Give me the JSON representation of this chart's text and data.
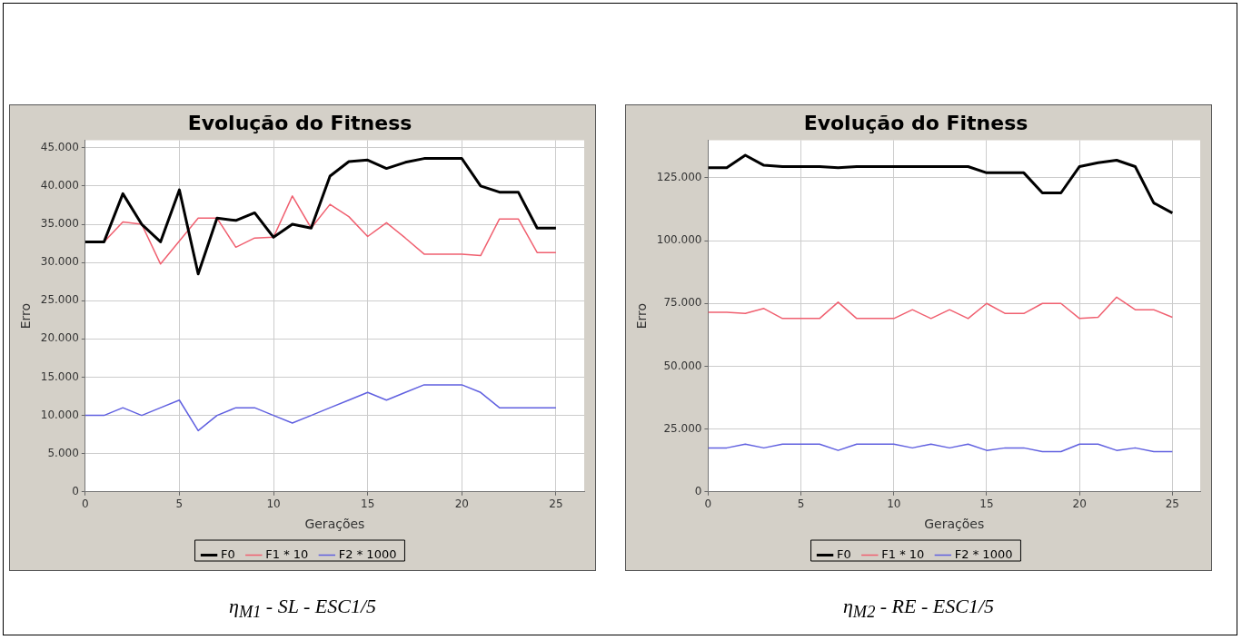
{
  "chart_data": [
    {
      "type": "line",
      "title": "Evolução do Fitness",
      "xlabel": "Gerações",
      "ylabel": "Erro",
      "grid": true,
      "legend": "bottom",
      "marker": "none",
      "x": [
        0,
        1,
        2,
        3,
        4,
        5,
        6,
        7,
        8,
        9,
        10,
        11,
        12,
        13,
        14,
        15,
        16,
        17,
        18,
        19,
        20,
        21,
        22,
        23,
        24,
        25
      ],
      "xlim": [
        0,
        26.5
      ],
      "xticks": [
        0,
        5,
        10,
        15,
        20,
        25
      ],
      "ylim": [
        0,
        46000
      ],
      "yticks": [
        {
          "value": 0,
          "label": "0"
        },
        {
          "value": 5000,
          "label": "5.000"
        },
        {
          "value": 10000,
          "label": "10.000"
        },
        {
          "value": 15000,
          "label": "15.000"
        },
        {
          "value": 20000,
          "label": "20.000"
        },
        {
          "value": 25000,
          "label": "25.000"
        },
        {
          "value": 30000,
          "label": "30.000"
        },
        {
          "value": 35000,
          "label": "35.000"
        },
        {
          "value": 40000,
          "label": "40.000"
        },
        {
          "value": 45000,
          "label": "45.000"
        }
      ],
      "series": [
        {
          "name": "F0",
          "color": "#000000",
          "values": [
            32700,
            32700,
            39000,
            35000,
            32700,
            39500,
            28500,
            35800,
            35500,
            36500,
            33300,
            35000,
            34500,
            41300,
            43200,
            43400,
            42300,
            43100,
            43600,
            43600,
            43600,
            40000,
            39200,
            39200,
            34500,
            34500
          ]
        },
        {
          "name": "F1 * 10",
          "color": "#f06070",
          "values": [
            null,
            32700,
            35300,
            35000,
            29800,
            32800,
            35800,
            35800,
            32000,
            33200,
            33300,
            38700,
            34500,
            37600,
            36000,
            33400,
            35200,
            33200,
            31100,
            31100,
            31100,
            30900,
            35700,
            35700,
            31300,
            31300
          ]
        },
        {
          "name": "F2 * 1000",
          "color": "#6060e0",
          "values": [
            10000,
            10000,
            11000,
            10000,
            11000,
            12000,
            8000,
            10000,
            11000,
            11000,
            10000,
            9000,
            10000,
            11000,
            12000,
            13000,
            12000,
            13000,
            14000,
            14000,
            14000,
            13000,
            11000,
            11000,
            11000,
            11000
          ]
        }
      ],
      "annotations": [
        "η$_{M1}$ - SL - ESC1/5"
      ]
    },
    {
      "type": "line",
      "title": "Evolução do Fitness",
      "xlabel": "Gerações",
      "ylabel": "Erro",
      "grid": true,
      "legend": "bottom",
      "marker": "none",
      "x": [
        0,
        1,
        2,
        3,
        4,
        5,
        6,
        7,
        8,
        9,
        10,
        11,
        12,
        13,
        14,
        15,
        16,
        17,
        18,
        19,
        20,
        21,
        22,
        23,
        24,
        25
      ],
      "xlim": [
        0,
        26.5
      ],
      "xticks": [
        0,
        5,
        10,
        15,
        20,
        25
      ],
      "ylim": [
        0,
        140000
      ],
      "yticks": [
        {
          "value": 0,
          "label": "0"
        },
        {
          "value": 25000,
          "label": "25.000"
        },
        {
          "value": 50000,
          "label": "50.000"
        },
        {
          "value": 75000,
          "label": "75.000"
        },
        {
          "value": 100000,
          "label": "100.000"
        },
        {
          "value": 125000,
          "label": "125.000"
        }
      ],
      "series": [
        {
          "name": "F0",
          "color": "#000000",
          "values": [
            129000,
            129000,
            134000,
            130000,
            129500,
            129500,
            129500,
            129000,
            129500,
            129500,
            129500,
            129500,
            129500,
            129500,
            129500,
            127000,
            127000,
            127000,
            119000,
            119000,
            129500,
            131000,
            132000,
            129500,
            115000,
            111000
          ]
        },
        {
          "name": "F1 * 10",
          "color": "#f06070",
          "values": [
            71500,
            71500,
            71000,
            73000,
            69000,
            69000,
            69000,
            75500,
            69000,
            69000,
            69000,
            72500,
            69000,
            72500,
            69000,
            75000,
            71000,
            71000,
            75000,
            75000,
            69000,
            69500,
            77500,
            72500,
            72500,
            69500
          ]
        },
        {
          "name": "F2 * 1000",
          "color": "#6060e0",
          "values": [
            17500,
            17500,
            19000,
            17500,
            19000,
            19000,
            19000,
            16500,
            19000,
            19000,
            19000,
            17500,
            19000,
            17500,
            19000,
            16500,
            17500,
            17500,
            16000,
            16000,
            19000,
            19000,
            16500,
            17500,
            16000,
            16000
          ]
        }
      ],
      "annotations": [
        "η$_{M2}$ - RE - ESC1/5"
      ]
    }
  ]
}
